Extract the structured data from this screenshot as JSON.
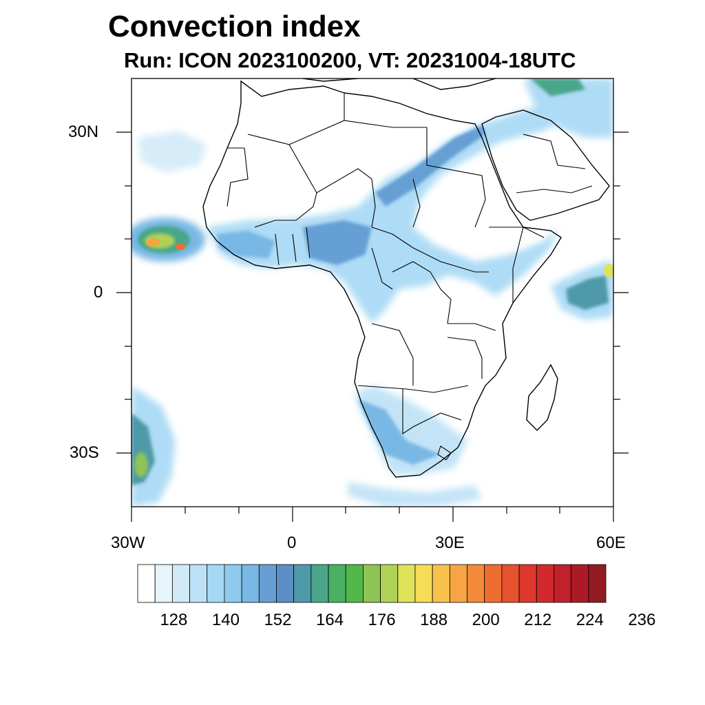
{
  "title": "Convection index",
  "subtitle": "Run: ICON 2023100200,  VT: 20231004-18UTC",
  "axes": {
    "x_ticks": [
      {
        "lon": -30,
        "label": "30W"
      },
      {
        "lon": 0,
        "label": "0"
      },
      {
        "lon": 30,
        "label": "30E"
      },
      {
        "lon": 60,
        "label": "60E"
      }
    ],
    "y_ticks": [
      {
        "lat": 30,
        "label": "30N"
      },
      {
        "lat": 0,
        "label": "0"
      },
      {
        "lat": -30,
        "label": "30S"
      }
    ],
    "lon_range": [
      -30,
      60
    ],
    "lat_range": [
      -40,
      40
    ]
  },
  "colorbar": {
    "labels": [
      "128",
      "140",
      "152",
      "164",
      "176",
      "188",
      "200",
      "212",
      "224",
      "236"
    ],
    "colors": [
      "#ffffff",
      "#e8f4fc",
      "#d2eaf8",
      "#bde1f6",
      "#a6d8f4",
      "#8fcaee",
      "#79b8e4",
      "#659fd4",
      "#5b8fc6",
      "#4f9aa9",
      "#4aa68a",
      "#49b063",
      "#52b84c",
      "#8ec455",
      "#b0d157",
      "#dfe25a",
      "#f6dd56",
      "#f9c24c",
      "#f7a544",
      "#f38a3a",
      "#ee6d30",
      "#e6522d",
      "#de372c",
      "#d12a2c",
      "#c0212c",
      "#ab1b27",
      "#931a21"
    ]
  },
  "map": {
    "land_color": "#ffffff",
    "boundary_color": "#000000"
  }
}
